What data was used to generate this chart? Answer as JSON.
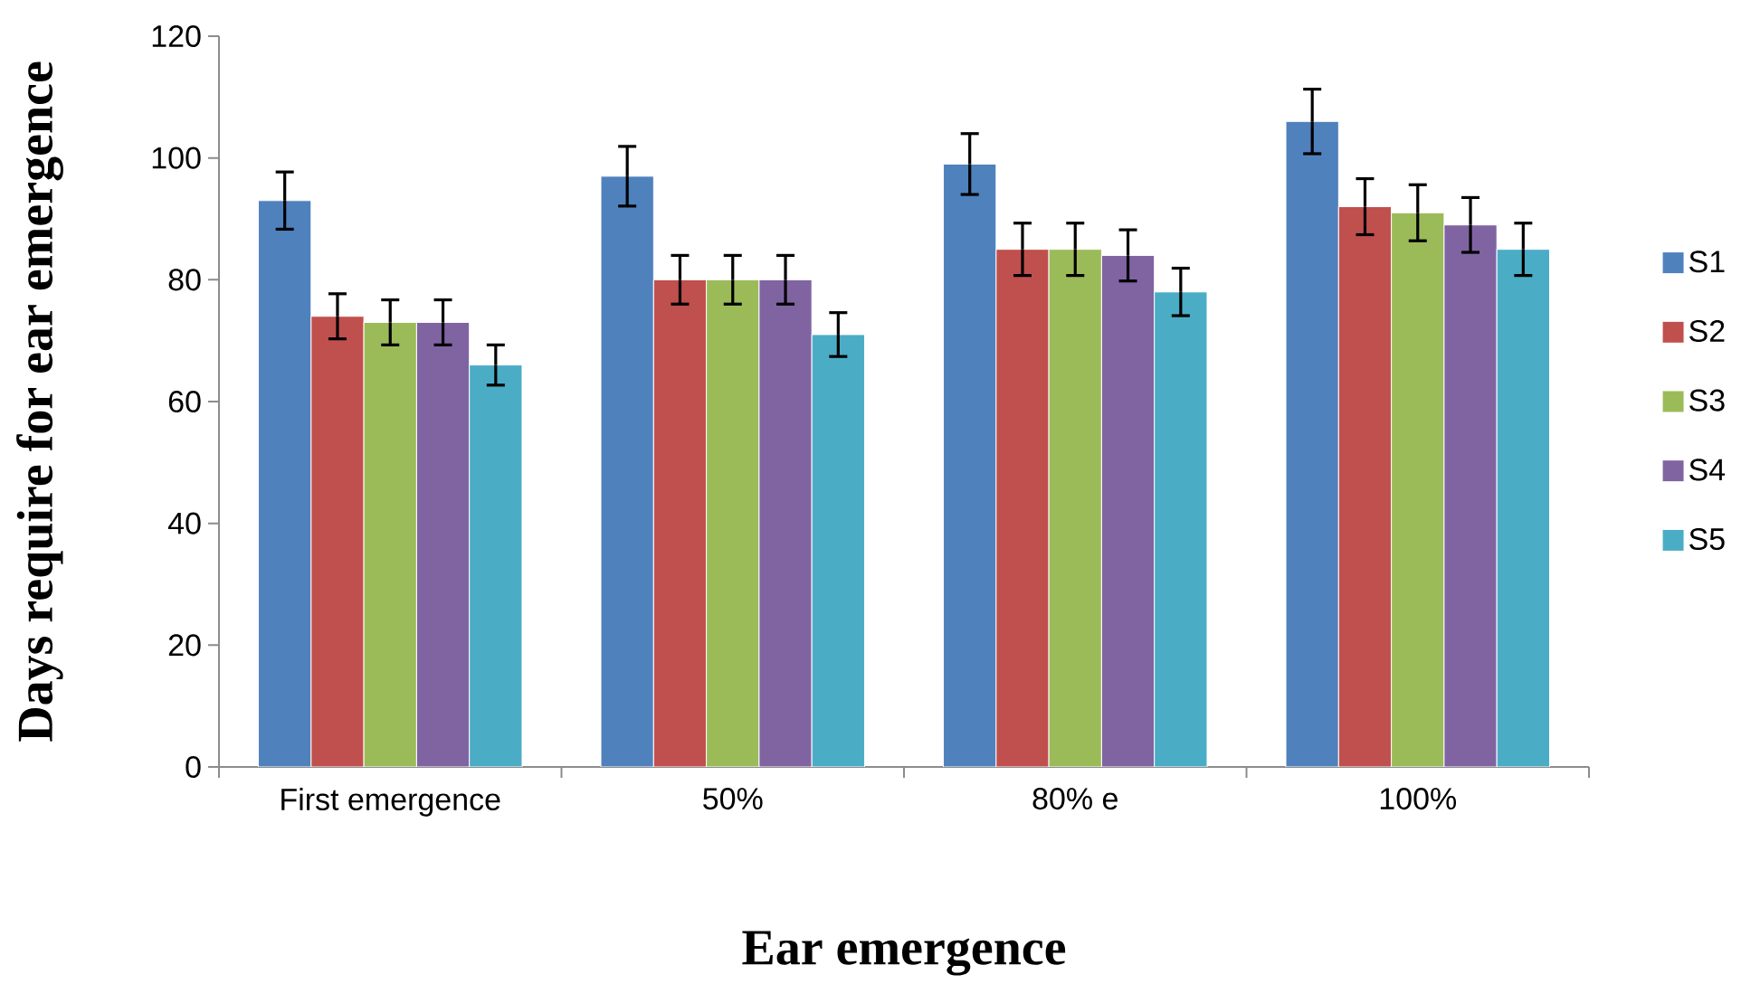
{
  "chart_data": {
    "type": "bar",
    "xlabel": "Ear emergence",
    "ylabel": "Days require for ear emergence",
    "categories": [
      "First emergence",
      "50%",
      "80% e",
      "100%"
    ],
    "series": [
      {
        "name": "S1",
        "color": "#4f81bd",
        "values": [
          93,
          97,
          99,
          106
        ],
        "errors": [
          4.7,
          4.9,
          5.0,
          5.3
        ]
      },
      {
        "name": "S2",
        "color": "#c0504d",
        "values": [
          74,
          80,
          85,
          92
        ],
        "errors": [
          3.7,
          4.0,
          4.3,
          4.6
        ]
      },
      {
        "name": "S3",
        "color": "#9bbb59",
        "values": [
          73,
          80,
          85,
          91
        ],
        "errors": [
          3.7,
          4.0,
          4.3,
          4.6
        ]
      },
      {
        "name": "S4",
        "color": "#8064a2",
        "values": [
          73,
          80,
          84,
          89
        ],
        "errors": [
          3.7,
          4.0,
          4.2,
          4.5
        ]
      },
      {
        "name": "S5",
        "color": "#4bacc6",
        "values": [
          66,
          71,
          78,
          85
        ],
        "errors": [
          3.3,
          3.6,
          3.9,
          4.3
        ]
      }
    ],
    "ylim": [
      0,
      120
    ],
    "yticks": [
      0,
      20,
      40,
      60,
      80,
      100,
      120
    ],
    "legend": "right",
    "grid": false
  }
}
